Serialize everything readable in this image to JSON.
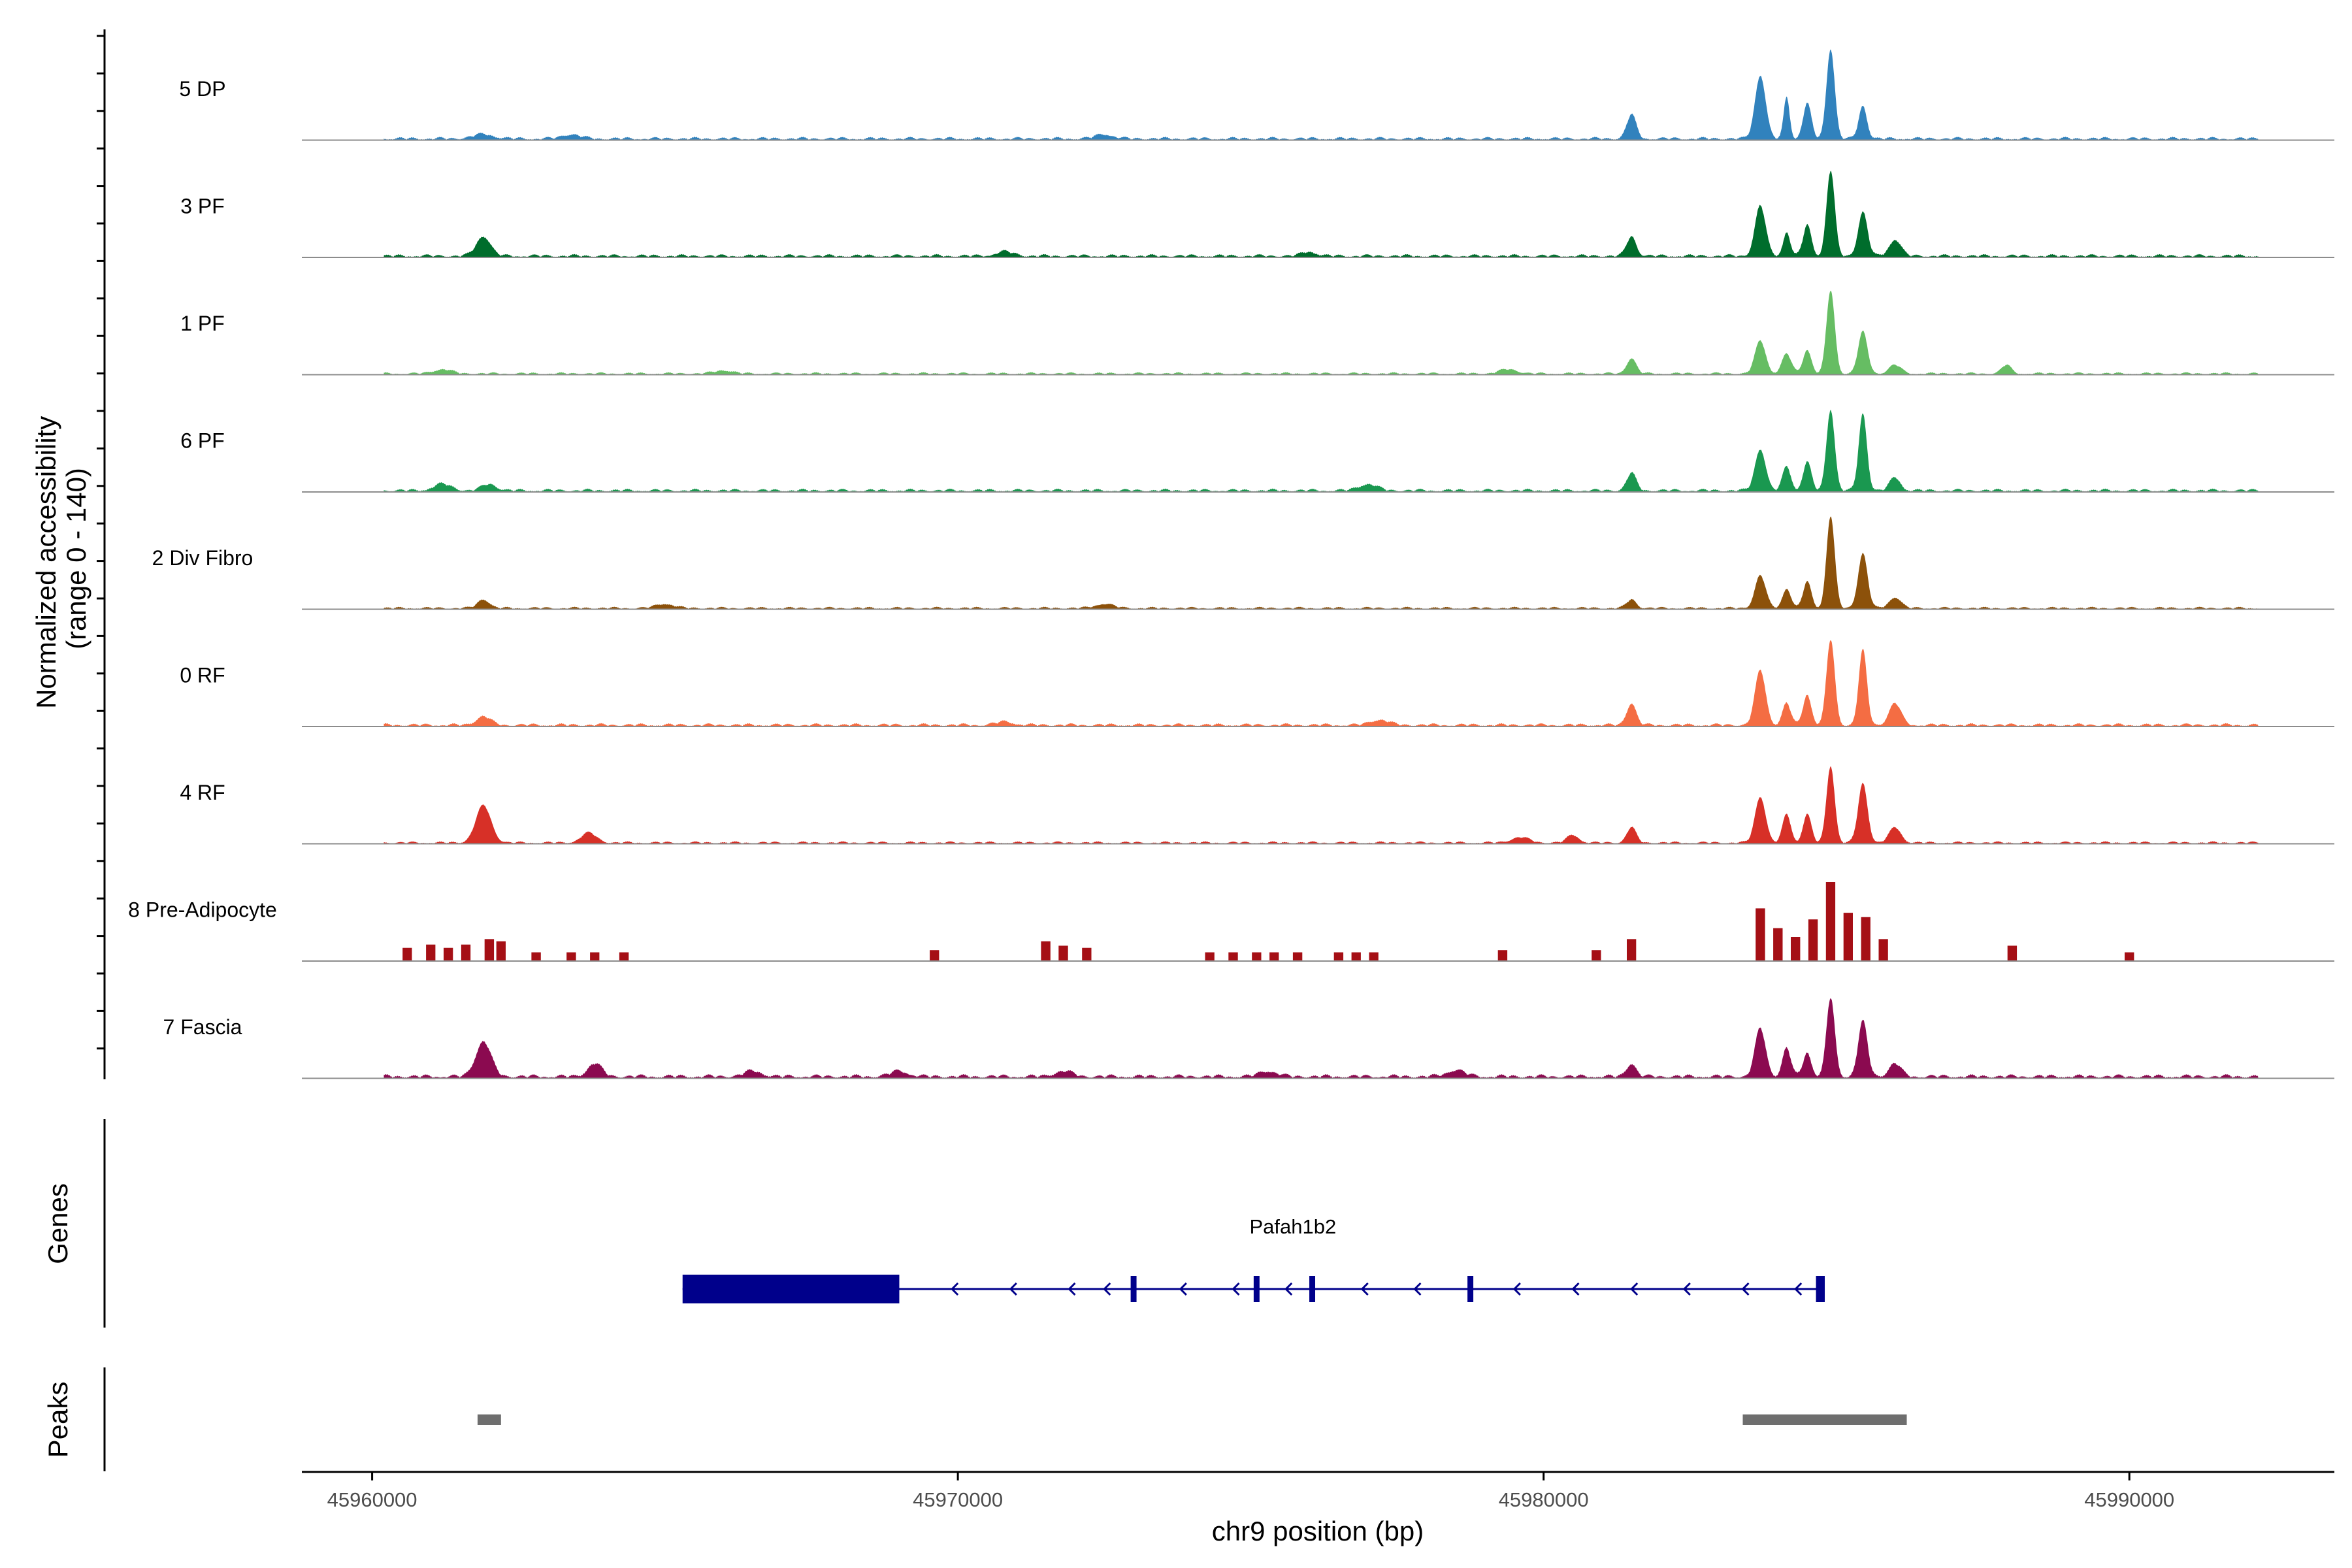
{
  "chart_data": {
    "type": "area",
    "title": "",
    "xlabel": "chr9 position (bp)",
    "ylabel": [
      "Normalized accessibility",
      "(range 0 - 140)"
    ],
    "xlim": [
      45958800,
      45993500
    ],
    "ylim": [
      0,
      140
    ],
    "x_ticks": [
      45960000,
      45970000,
      45980000,
      45990000
    ],
    "x_tick_labels": [
      "45960000",
      "45970000",
      "45980000",
      "45990000"
    ],
    "grid": false,
    "tracks": [
      {
        "name": "5 DP",
        "color": "#3182bd",
        "style": "smooth",
        "base": 4,
        "peaks": [
          [
            45961900,
            4,
            180
          ],
          [
            45963400,
            4,
            150
          ],
          [
            45972500,
            4,
            150
          ],
          [
            45981500,
            22,
            80
          ],
          [
            45983700,
            58,
            90
          ],
          [
            45984150,
            38,
            50
          ],
          [
            45984500,
            32,
            70
          ],
          [
            45984900,
            82,
            70
          ],
          [
            45985450,
            30,
            70
          ]
        ]
      },
      {
        "name": "3 PF",
        "color": "#006d2c",
        "style": "smooth",
        "base": 4,
        "peaks": [
          [
            45961900,
            18,
            120
          ],
          [
            45970800,
            4,
            150
          ],
          [
            45976000,
            4,
            120
          ],
          [
            45981500,
            18,
            80
          ],
          [
            45983700,
            46,
            90
          ],
          [
            45984150,
            22,
            60
          ],
          [
            45984500,
            28,
            70
          ],
          [
            45984900,
            78,
            70
          ],
          [
            45985450,
            40,
            80
          ],
          [
            45986000,
            15,
            100
          ]
        ]
      },
      {
        "name": "1 PF",
        "color": "#66bd63",
        "style": "smooth",
        "base": 3,
        "peaks": [
          [
            45961200,
            4,
            150
          ],
          [
            45966000,
            3,
            150
          ],
          [
            45979400,
            4,
            150
          ],
          [
            45981500,
            14,
            80
          ],
          [
            45983700,
            30,
            90
          ],
          [
            45984150,
            18,
            80
          ],
          [
            45984500,
            22,
            70
          ],
          [
            45984900,
            76,
            70
          ],
          [
            45985450,
            38,
            80
          ],
          [
            45986000,
            8,
            100
          ],
          [
            45987900,
            8,
            80
          ]
        ]
      },
      {
        "name": "6 PF",
        "color": "#1a9850",
        "style": "smooth",
        "base": 4,
        "peaks": [
          [
            45961200,
            6,
            150
          ],
          [
            45962000,
            6,
            120
          ],
          [
            45977000,
            6,
            150
          ],
          [
            45981500,
            16,
            80
          ],
          [
            45983700,
            38,
            90
          ],
          [
            45984150,
            22,
            70
          ],
          [
            45984500,
            26,
            70
          ],
          [
            45984900,
            74,
            70
          ],
          [
            45985450,
            70,
            70
          ],
          [
            45986000,
            12,
            90
          ]
        ]
      },
      {
        "name": "2 Div Fibro",
        "color": "#8c510a",
        "style": "smooth",
        "base": 3,
        "peaks": [
          [
            45961900,
            8,
            100
          ],
          [
            45965000,
            4,
            150
          ],
          [
            45972500,
            4,
            150
          ],
          [
            45981500,
            8,
            80
          ],
          [
            45983700,
            30,
            90
          ],
          [
            45984150,
            18,
            70
          ],
          [
            45984500,
            24,
            70
          ],
          [
            45984900,
            84,
            70
          ],
          [
            45985450,
            50,
            80
          ],
          [
            45986000,
            10,
            100
          ]
        ]
      },
      {
        "name": "0 RF",
        "color": "#f46d43",
        "style": "smooth",
        "base": 4,
        "peaks": [
          [
            45961900,
            8,
            120
          ],
          [
            45970800,
            3,
            150
          ],
          [
            45977200,
            5,
            150
          ],
          [
            45981500,
            20,
            80
          ],
          [
            45983700,
            50,
            90
          ],
          [
            45984150,
            20,
            70
          ],
          [
            45984500,
            28,
            70
          ],
          [
            45984900,
            78,
            70
          ],
          [
            45985450,
            68,
            70
          ],
          [
            45986000,
            20,
            100
          ]
        ]
      },
      {
        "name": "4 RF",
        "color": "#d73027",
        "style": "smooth",
        "base": 3,
        "peaks": [
          [
            45961900,
            34,
            130
          ],
          [
            45963700,
            9,
            130
          ],
          [
            45979600,
            5,
            150
          ],
          [
            45980500,
            7,
            100
          ],
          [
            45981500,
            14,
            80
          ],
          [
            45983700,
            42,
            90
          ],
          [
            45984150,
            26,
            70
          ],
          [
            45984500,
            26,
            70
          ],
          [
            45984900,
            70,
            70
          ],
          [
            45985450,
            54,
            80
          ],
          [
            45986000,
            14,
            100
          ]
        ]
      },
      {
        "name": "8 Pre-Adipocyte",
        "color": "#a50f15",
        "style": "blocky",
        "blocks": [
          [
            45960600,
            12
          ],
          [
            45961000,
            15
          ],
          [
            45961300,
            12
          ],
          [
            45961600,
            15
          ],
          [
            45962000,
            20
          ],
          [
            45962200,
            18
          ],
          [
            45962800,
            8
          ],
          [
            45963400,
            8
          ],
          [
            45963800,
            8
          ],
          [
            45964300,
            8
          ],
          [
            45969600,
            10
          ],
          [
            45971500,
            18
          ],
          [
            45971800,
            14
          ],
          [
            45972200,
            12
          ],
          [
            45974300,
            8
          ],
          [
            45974700,
            8
          ],
          [
            45975100,
            8
          ],
          [
            45975400,
            8
          ],
          [
            45975800,
            8
          ],
          [
            45976500,
            8
          ],
          [
            45976800,
            8
          ],
          [
            45977100,
            8
          ],
          [
            45979300,
            10
          ],
          [
            45980900,
            10
          ],
          [
            45981500,
            20
          ],
          [
            45983700,
            48
          ],
          [
            45984000,
            30
          ],
          [
            45984300,
            22
          ],
          [
            45984600,
            38
          ],
          [
            45984900,
            72
          ],
          [
            45985200,
            44
          ],
          [
            45985500,
            40
          ],
          [
            45985800,
            20
          ],
          [
            45988000,
            14
          ],
          [
            45990000,
            8
          ]
        ]
      },
      {
        "name": "7 Fascia",
        "color": "#8b0a50",
        "style": "smooth",
        "base": 5,
        "peaks": [
          [
            45961900,
            32,
            130
          ],
          [
            45963800,
            12,
            120
          ],
          [
            45966500,
            5,
            150
          ],
          [
            45969000,
            5,
            150
          ],
          [
            45971800,
            5,
            150
          ],
          [
            45975300,
            5,
            150
          ],
          [
            45978500,
            6,
            150
          ],
          [
            45981500,
            12,
            80
          ],
          [
            45983700,
            44,
            90
          ],
          [
            45984150,
            26,
            70
          ],
          [
            45984500,
            22,
            70
          ],
          [
            45984900,
            72,
            70
          ],
          [
            45985450,
            50,
            80
          ],
          [
            45986000,
            12,
            100
          ]
        ]
      }
    ],
    "genes": [
      {
        "name": "Pafah1b2",
        "strand": "-",
        "start": 45965300,
        "end": 45984800,
        "color": "#00008b",
        "exons": [
          [
            45965300,
            45969000
          ],
          [
            45972950,
            45973050
          ],
          [
            45975050,
            45975150
          ],
          [
            45976000,
            45976100
          ],
          [
            45978700,
            45978800
          ],
          [
            45984650,
            45984800
          ]
        ]
      }
    ],
    "peaks": [
      [
        45961800,
        45962200
      ],
      [
        45983400,
        45986200
      ]
    ],
    "panel_labels": {
      "genes": "Genes",
      "peaks": "Peaks"
    }
  }
}
